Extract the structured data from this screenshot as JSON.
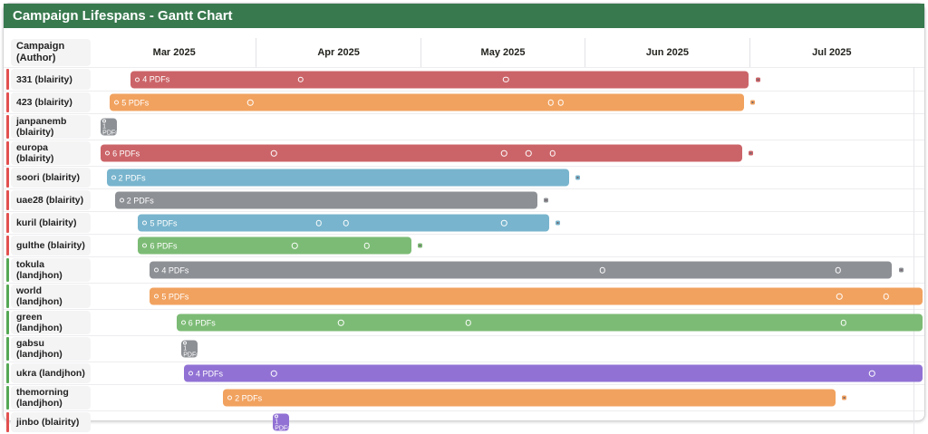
{
  "title": "Campaign Lifespans - Gantt Chart",
  "header": {
    "row_header_line1": "Campaign",
    "row_header_line2": "(Author)"
  },
  "chart_data": {
    "type": "gantt",
    "title": "Campaign Lifespans - Gantt Chart",
    "x_axis": {
      "unit": "month",
      "range": [
        "Mar 2025",
        "Jul 2025"
      ]
    },
    "months": [
      "Mar 2025",
      "Apr 2025",
      "May 2025",
      "Jun 2025",
      "Jul 2025"
    ],
    "legend": "bar label shows number of PDFs; circle marks are PDF events within the campaign lifespan",
    "bar_colors": {
      "red": "#cb6468",
      "orange": "#f1a25f",
      "gray": "#8d9095",
      "blue": "#78b4cd",
      "green": "#7cbb75",
      "purple": "#9172d4"
    },
    "stripe_colors": {
      "blairity": "#e25050",
      "landjhon": "#55a855"
    },
    "title_bar_color": "#38794e",
    "campaigns": [
      {
        "label": "331 (blairity)",
        "author": "blairity",
        "color_key": "red",
        "bar_label": "4 PDFs",
        "pdf_count": 4,
        "start_pct": 4.6,
        "end_pct": 78.9,
        "marker_pcts": [
          25.0,
          49.7
        ],
        "end_marker": true,
        "tiny": false
      },
      {
        "label": "423 (blairity)",
        "author": "blairity",
        "color_key": "orange",
        "bar_label": "5 PDFs",
        "pdf_count": 5,
        "start_pct": 2.1,
        "end_pct": 78.3,
        "marker_pcts": [
          19.0,
          55.1,
          56.3
        ],
        "end_marker": true,
        "tiny": false
      },
      {
        "label": "janpanemb (blairity)",
        "author": "blairity",
        "color_key": "gray",
        "bar_label": "1 PDFs",
        "pdf_count": 1,
        "start_pct": 1.0,
        "end_pct": 2.9,
        "marker_pcts": [],
        "end_marker": false,
        "tiny": true
      },
      {
        "label": "europa (blairity)",
        "author": "blairity",
        "color_key": "red",
        "bar_label": "6 PDFs",
        "pdf_count": 6,
        "start_pct": 1.0,
        "end_pct": 78.1,
        "marker_pcts": [
          21.8,
          49.5,
          52.4,
          55.3
        ],
        "end_marker": true,
        "tiny": false
      },
      {
        "label": "soori (blairity)",
        "author": "blairity",
        "color_key": "blue",
        "bar_label": "2 PDFs",
        "pdf_count": 2,
        "start_pct": 1.7,
        "end_pct": 57.3,
        "marker_pcts": [],
        "end_marker": true,
        "tiny": false
      },
      {
        "label": "uae28 (blairity)",
        "author": "blairity",
        "color_key": "gray",
        "bar_label": "2 PDFs",
        "pdf_count": 2,
        "start_pct": 2.7,
        "end_pct": 53.5,
        "marker_pcts": [],
        "end_marker": true,
        "tiny": false
      },
      {
        "label": "kuril (blairity)",
        "author": "blairity",
        "color_key": "blue",
        "bar_label": "5 PDFs",
        "pdf_count": 5,
        "start_pct": 5.5,
        "end_pct": 54.9,
        "marker_pcts": [
          27.2,
          30.5,
          49.5
        ],
        "end_marker": true,
        "tiny": false
      },
      {
        "label": "gulthe (blairity)",
        "author": "blairity",
        "color_key": "green",
        "bar_label": "6 PDFs",
        "pdf_count": 6,
        "start_pct": 5.5,
        "end_pct": 38.3,
        "marker_pcts": [
          24.3,
          33.0
        ],
        "end_marker": true,
        "tiny": false
      },
      {
        "label": "tokula (landjhon)",
        "author": "landjhon",
        "color_key": "gray",
        "bar_label": "4 PDFs",
        "pdf_count": 4,
        "start_pct": 6.9,
        "end_pct": 96.1,
        "marker_pcts": [
          61.3,
          89.6
        ],
        "end_marker": true,
        "tiny": false
      },
      {
        "label": "world (landjhon)",
        "author": "landjhon",
        "color_key": "orange",
        "bar_label": "5 PDFs",
        "pdf_count": 5,
        "start_pct": 6.9,
        "end_pct": 99.8,
        "marker_pcts": [
          89.8,
          95.4
        ],
        "end_marker": false,
        "tiny": false
      },
      {
        "label": "green (landjhon)",
        "author": "landjhon",
        "color_key": "green",
        "bar_label": "6 PDFs",
        "pdf_count": 6,
        "start_pct": 10.1,
        "end_pct": 99.8,
        "marker_pcts": [
          29.9,
          45.2,
          90.3
        ],
        "end_marker": false,
        "tiny": false
      },
      {
        "label": "gabsu (landjhon)",
        "author": "landjhon",
        "color_key": "gray",
        "bar_label": "1 PDFs",
        "pdf_count": 1,
        "start_pct": 10.7,
        "end_pct": 12.6,
        "marker_pcts": [],
        "end_marker": false,
        "tiny": true
      },
      {
        "label": "ukra (landjhon)",
        "author": "landjhon",
        "color_key": "purple",
        "bar_label": "4 PDFs",
        "pdf_count": 4,
        "start_pct": 11.0,
        "end_pct": 99.8,
        "marker_pcts": [
          21.8,
          93.7
        ],
        "end_marker": false,
        "tiny": false
      },
      {
        "label": "themorning (landjhon)",
        "author": "landjhon",
        "color_key": "orange",
        "bar_label": "2 PDFs",
        "pdf_count": 2,
        "start_pct": 15.7,
        "end_pct": 89.3,
        "marker_pcts": [],
        "end_marker": true,
        "tiny": false
      },
      {
        "label": "jinbo (blairity)",
        "author": "blairity",
        "color_key": "purple",
        "bar_label": "1 PDFs",
        "pdf_count": 1,
        "start_pct": 21.7,
        "end_pct": 23.6,
        "marker_pcts": [],
        "end_marker": false,
        "tiny": true
      }
    ]
  }
}
